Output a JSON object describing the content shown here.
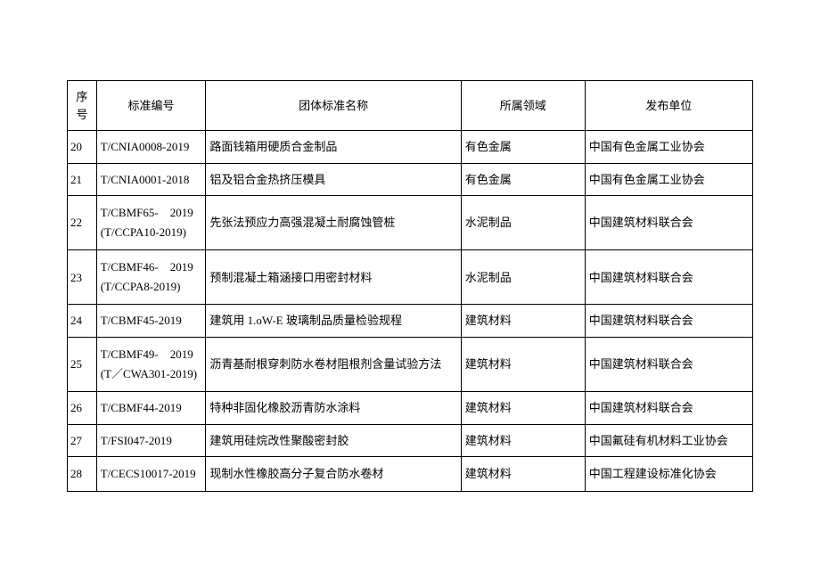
{
  "table": {
    "columns": [
      "序号",
      "标准编号",
      "团体标准名称",
      "所属领域",
      "发布单位"
    ],
    "rows": [
      {
        "seq": "20",
        "code": "T/CNIA0008-2019",
        "name": "路面钱箱用硬质合金制品",
        "field": "有色金属",
        "publisher": "中国有色金属工业协会"
      },
      {
        "seq": "21",
        "code": "T/CNIA0001-2018",
        "name": "铝及铝合金热挤压模具",
        "field": "有色金属",
        "publisher": "中国有色金属工业协会"
      },
      {
        "seq": "22",
        "code": "T/CBMF65-　2019(T/CCPA10-2019)",
        "name": "先张法预应力高强混凝土耐腐蚀管桩",
        "field": "水泥制品",
        "publisher": "中国建筑材料联合会"
      },
      {
        "seq": "23",
        "code": "T/CBMF46-　2019(T/CCPA8-2019)",
        "name": "预制混凝土箱涵接口用密封材料",
        "field": "水泥制品",
        "publisher": "中国建筑材料联合会"
      },
      {
        "seq": "24",
        "code": "T/CBMF45-2019",
        "name": "建筑用 1.oW-E 玻璃制品质量检验规程",
        "field": "建筑材料",
        "publisher": "中国建筑材料联合会"
      },
      {
        "seq": "25",
        "code": "T/CBMF49-　2019(T／CWA301-2019)",
        "name": "沥青基耐根穿刺防水卷材阻根剂含量试验方法",
        "field": "建筑材料",
        "publisher": "中国建筑材料联合会"
      },
      {
        "seq": "26",
        "code": "T/CBMF44-2019",
        "name": "特种非固化橡胶沥青防水涂料",
        "field": "建筑材料",
        "publisher": "中国建筑材料联合会"
      },
      {
        "seq": "27",
        "code": "T/FSI047-2019",
        "name": "建筑用硅烷改性聚酸密封胶",
        "field": "建筑材料",
        "publisher": "中国氟硅有机材料工业协会"
      },
      {
        "seq": "28",
        "code": "T/CECS10017-2019",
        "name": "现制水性橡胶高分子复合防水卷材",
        "field": "建筑材料",
        "publisher": "中国工程建设标准化协会"
      }
    ],
    "border_color": "#000000",
    "background_color": "#ffffff",
    "text_color": "#000000",
    "font_size": 13
  }
}
